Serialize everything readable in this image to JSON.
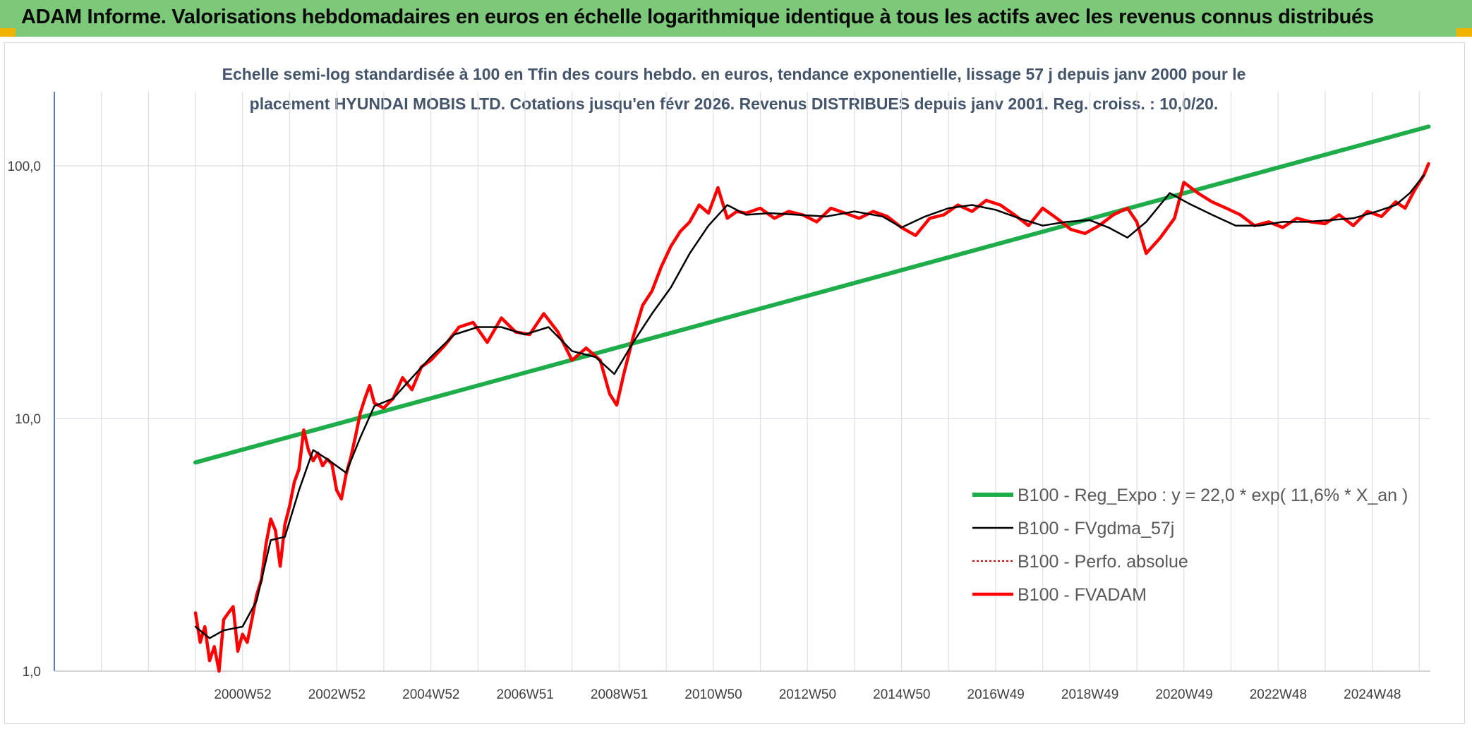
{
  "banner": {
    "title": "ADAM Informe. Valorisations hebdomadaires en euros en échelle logarithmique identique à tous les actifs avec les revenus connus distribués",
    "color": "#7cc97a"
  },
  "chart_data": {
    "type": "line",
    "title_line1": "Echelle semi-log standardisée à 100 en Tfin des cours hebdo. en euros, tendance exponentielle, lissage 57 j depuis janv 2000 pour le",
    "title_line2": "placement HYUNDAI MOBIS LTD. Cotations jusqu'en févr 2026. Revenus DISTRIBUES depuis janv 2001. Reg. croiss. : 10,0/20.",
    "y_scale": "log",
    "ylim": [
      1,
      180
    ],
    "y_ticks": [
      "1,0",
      "10,0",
      "100,0"
    ],
    "x_ticks": [
      "2000W52",
      "2002W52",
      "2004W52",
      "2006W51",
      "2008W51",
      "2010W50",
      "2012W50",
      "2014W50",
      "2016W49",
      "2018W49",
      "2020W49",
      "2022W48",
      "2024W48"
    ],
    "xlim": [
      1998.0,
      2026.3
    ],
    "legend_position": "bottom-right",
    "grid": true,
    "series": [
      {
        "name": "B100 - Reg_Expo : y = 22,0 * exp( 11,6% *  X_an )",
        "color": "#1fad4b",
        "x": [
          2000.0,
          2026.2
        ],
        "y": [
          6.7,
          143
        ]
      },
      {
        "name": "B100 - FVgdma_57j",
        "color": "#000000",
        "x": [
          2000.0,
          2000.3,
          2000.6,
          2001.0,
          2001.3,
          2001.6,
          2001.9,
          2002.2,
          2002.5,
          2002.8,
          2003.2,
          2003.5,
          2003.8,
          2004.2,
          2004.6,
          2005.0,
          2005.5,
          2006.0,
          2006.5,
          2007.0,
          2007.5,
          2008.0,
          2008.5,
          2008.9,
          2009.3,
          2009.7,
          2010.1,
          2010.5,
          2010.9,
          2011.3,
          2011.7,
          2012.2,
          2012.8,
          2013.4,
          2014.0,
          2014.6,
          2015.0,
          2015.5,
          2016.0,
          2016.5,
          2017.0,
          2017.5,
          2018.0,
          2018.5,
          2019.0,
          2019.4,
          2019.8,
          2020.2,
          2020.7,
          2021.1,
          2021.6,
          2022.1,
          2022.6,
          2023.1,
          2023.6,
          2024.1,
          2024.6,
          2025.1,
          2025.5,
          2025.8,
          2026.1
        ],
        "y": [
          1.5,
          1.35,
          1.45,
          1.5,
          1.9,
          3.3,
          3.4,
          5.2,
          7.5,
          6.9,
          6.1,
          8.4,
          11.2,
          12.0,
          14.5,
          17.5,
          21.5,
          23.0,
          23.0,
          21.5,
          23.0,
          18.5,
          17.5,
          15.0,
          20.0,
          26.0,
          33.0,
          45.0,
          58.0,
          70.0,
          64.0,
          65.0,
          64.0,
          63.0,
          66.0,
          63.0,
          57.0,
          63.0,
          68.0,
          70.0,
          67.0,
          62.0,
          58.0,
          60.0,
          61.0,
          57.0,
          52.0,
          60.0,
          78.0,
          71.0,
          64.0,
          58.0,
          58.0,
          60.0,
          60.0,
          61.0,
          62.0,
          66.0,
          70.0,
          78.0,
          92.0
        ]
      },
      {
        "name": "B100 - Perfo. absolue",
        "color": "#c00000",
        "x": [],
        "y": []
      },
      {
        "name": "B100 - FVADAM",
        "color": "#ff0000",
        "x": [
          2000.0,
          2000.1,
          2000.2,
          2000.3,
          2000.4,
          2000.5,
          2000.6,
          2000.7,
          2000.8,
          2000.9,
          2001.0,
          2001.1,
          2001.2,
          2001.3,
          2001.4,
          2001.5,
          2001.6,
          2001.7,
          2001.8,
          2001.9,
          2002.0,
          2002.1,
          2002.2,
          2002.3,
          2002.4,
          2002.5,
          2002.6,
          2002.7,
          2002.8,
          2002.9,
          2003.0,
          2003.1,
          2003.2,
          2003.3,
          2003.4,
          2003.5,
          2003.6,
          2003.7,
          2003.8,
          2004.0,
          2004.2,
          2004.4,
          2004.6,
          2004.8,
          2005.0,
          2005.3,
          2005.6,
          2005.9,
          2006.2,
          2006.5,
          2006.8,
          2007.1,
          2007.4,
          2007.7,
          2008.0,
          2008.3,
          2008.6,
          2008.8,
          2008.95,
          2009.1,
          2009.3,
          2009.5,
          2009.7,
          2009.9,
          2010.1,
          2010.3,
          2010.5,
          2010.7,
          2010.9,
          2011.1,
          2011.3,
          2011.5,
          2011.7,
          2012.0,
          2012.3,
          2012.6,
          2012.9,
          2013.2,
          2013.5,
          2013.8,
          2014.1,
          2014.4,
          2014.7,
          2015.0,
          2015.3,
          2015.6,
          2015.9,
          2016.2,
          2016.5,
          2016.8,
          2017.1,
          2017.4,
          2017.7,
          2018.0,
          2018.3,
          2018.6,
          2018.9,
          2019.2,
          2019.5,
          2019.8,
          2020.0,
          2020.2,
          2020.5,
          2020.8,
          2021.0,
          2021.3,
          2021.6,
          2021.9,
          2022.2,
          2022.5,
          2022.8,
          2023.1,
          2023.4,
          2023.7,
          2024.0,
          2024.3,
          2024.6,
          2024.9,
          2025.2,
          2025.5,
          2025.7,
          2025.9,
          2026.1,
          2026.2
        ],
        "y": [
          1.7,
          1.3,
          1.5,
          1.1,
          1.25,
          1.0,
          1.6,
          1.7,
          1.8,
          1.2,
          1.4,
          1.3,
          1.6,
          2.0,
          2.3,
          3.2,
          4.0,
          3.6,
          2.6,
          3.8,
          4.5,
          5.6,
          6.3,
          9.0,
          7.5,
          6.8,
          7.3,
          6.5,
          6.9,
          6.6,
          5.2,
          4.8,
          6.0,
          7.0,
          8.5,
          10.5,
          12.0,
          13.5,
          11.5,
          11.0,
          12.0,
          14.5,
          13.0,
          16.0,
          17.0,
          19.5,
          23.0,
          24.0,
          20.0,
          25.0,
          22.0,
          21.5,
          26.0,
          22.0,
          17.0,
          19.0,
          17.0,
          12.5,
          11.3,
          15.0,
          21.0,
          28.0,
          32.0,
          40.0,
          48.0,
          55.0,
          60.0,
          70.0,
          65.0,
          82.0,
          62.0,
          66.0,
          65.0,
          68.0,
          62.0,
          66.0,
          64.0,
          60.0,
          68.0,
          65.0,
          62.0,
          66.0,
          63.0,
          57.0,
          53.0,
          62.0,
          64.0,
          70.0,
          66.0,
          73.0,
          70.0,
          64.0,
          58.0,
          68.0,
          62.0,
          56.0,
          54.0,
          58.0,
          64.0,
          68.0,
          60.0,
          45.0,
          52.0,
          62.0,
          86.0,
          78.0,
          72.0,
          68.0,
          64.0,
          58.0,
          60.0,
          57.0,
          62.0,
          60.0,
          59.0,
          64.0,
          58.0,
          66.0,
          63.0,
          72.0,
          68.0,
          80.0,
          92.0,
          102.0
        ]
      }
    ]
  }
}
